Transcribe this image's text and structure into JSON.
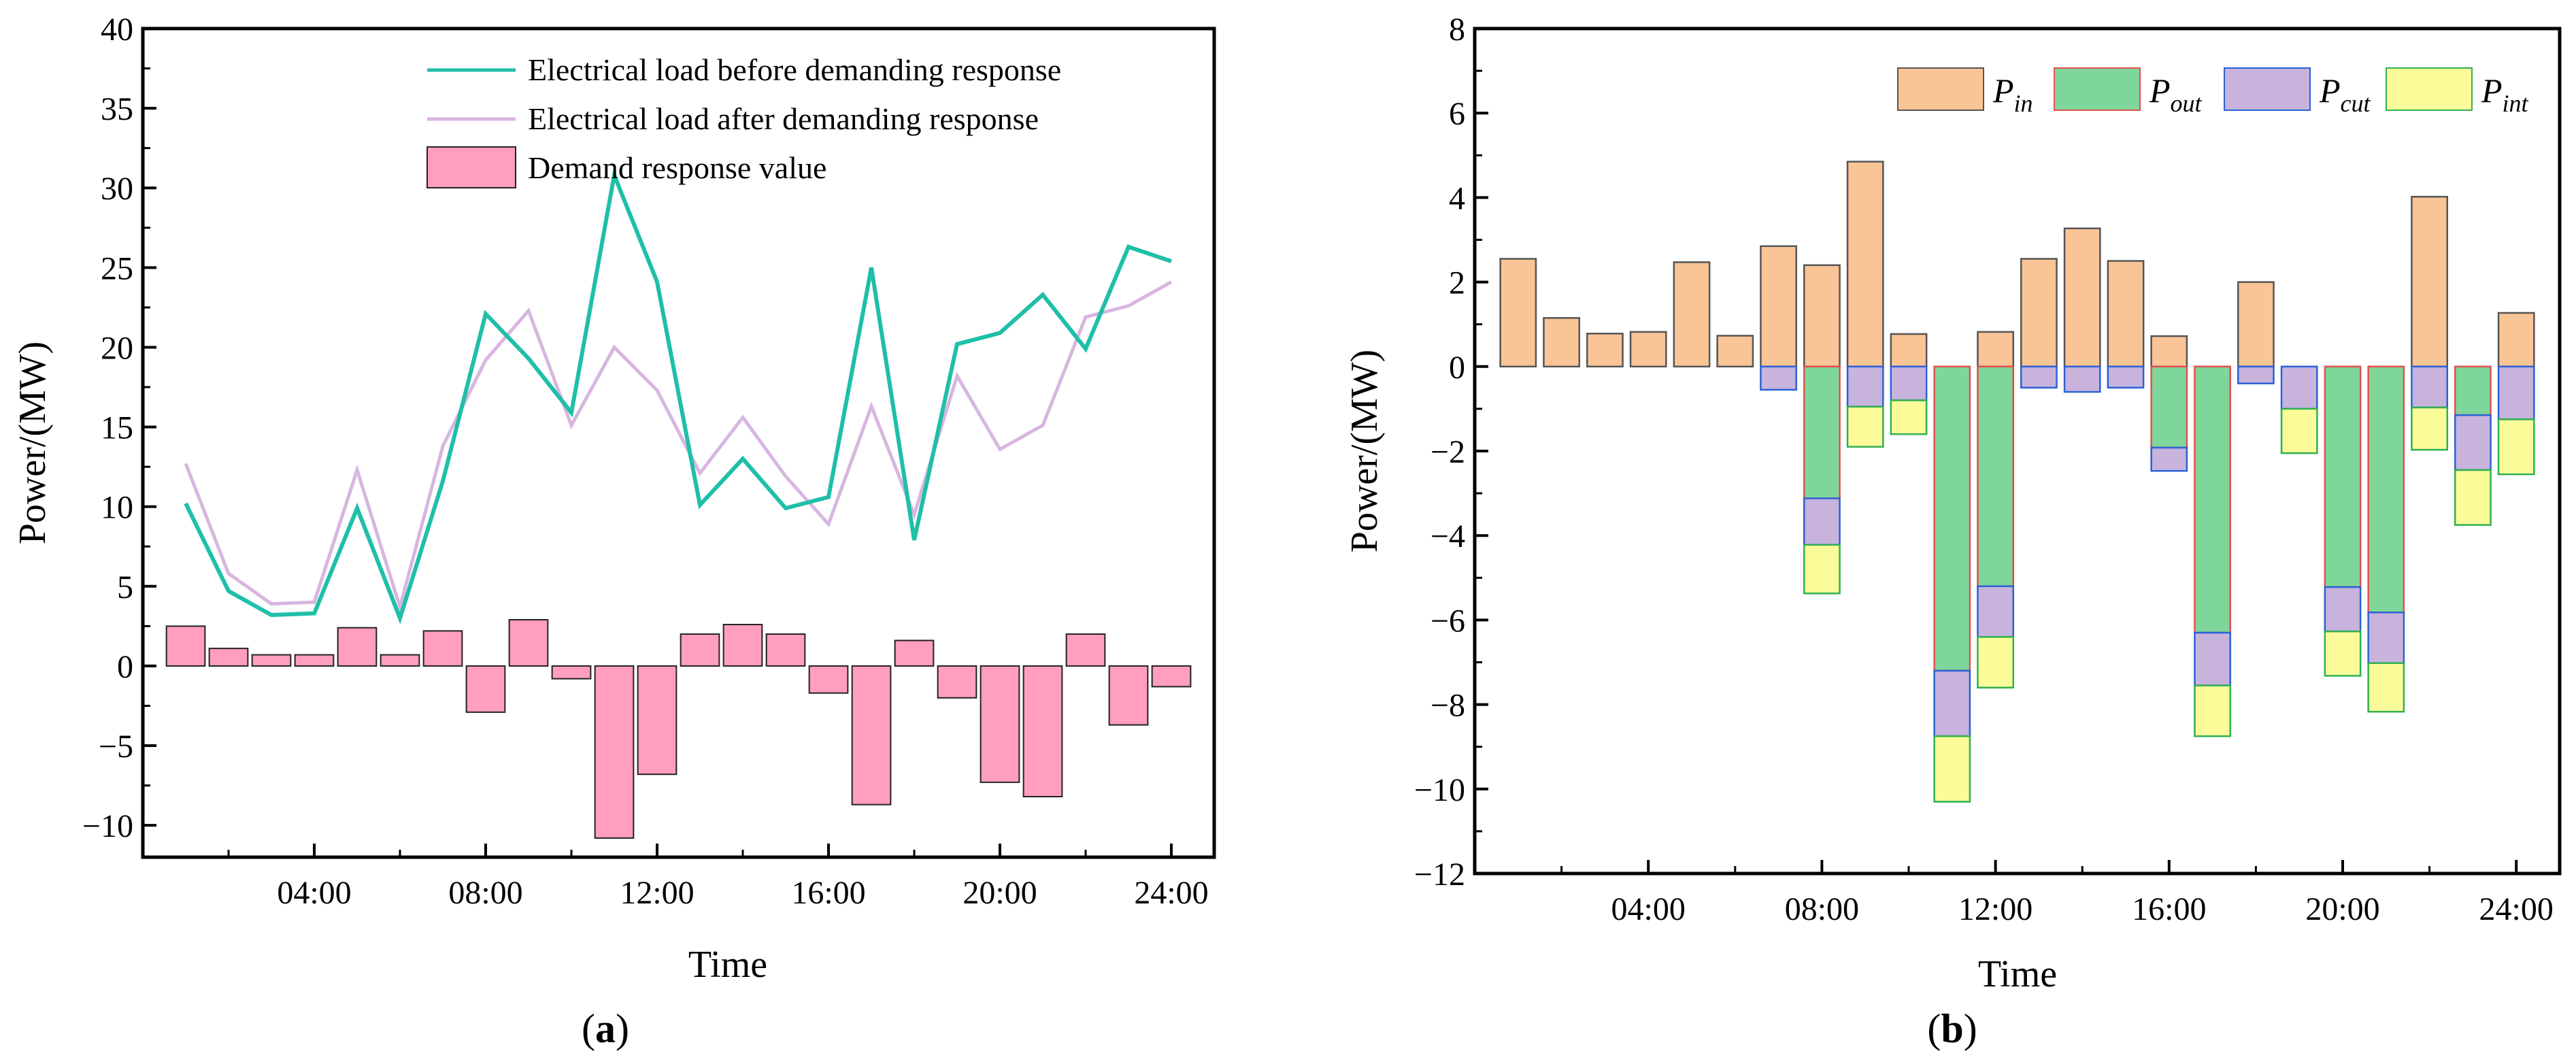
{
  "chart_data": [
    {
      "panel": "a",
      "caption": "(a)",
      "caption_letter": "a",
      "type": "line+bar",
      "xlabel": "Time",
      "ylabel": "Power/(MW)",
      "ylim": [
        -12,
        40
      ],
      "yticks": [
        -10,
        -5,
        0,
        5,
        10,
        15,
        20,
        25,
        30,
        35,
        40
      ],
      "ytick_labels": [
        "−10",
        "−5",
        "0",
        "5",
        "10",
        "15",
        "20",
        "25",
        "30",
        "35",
        "40"
      ],
      "xlim": [
        0,
        25
      ],
      "xticks": [
        4,
        8,
        12,
        16,
        20,
        24
      ],
      "xtick_labels": [
        "04:00",
        "08:00",
        "12:00",
        "16:00",
        "20:00",
        "24:00"
      ],
      "x": [
        1,
        2,
        3,
        4,
        5,
        6,
        7,
        8,
        9,
        10,
        11,
        12,
        13,
        14,
        15,
        16,
        17,
        18,
        19,
        20,
        21,
        22,
        23,
        24
      ],
      "legend_position": "top-right",
      "series": [
        {
          "name": "Electrical load before demanding response",
          "type": "line",
          "color": "#1fbfa8",
          "values": [
            10.2,
            4.7,
            3.2,
            3.3,
            9.9,
            3.0,
            11.6,
            22.1,
            19.3,
            15.9,
            30.8,
            24.1,
            10.1,
            13.0,
            9.9,
            10.6,
            25.0,
            7.9,
            20.2,
            20.9,
            23.3,
            19.9,
            26.3,
            25.4
          ]
        },
        {
          "name": "Electrical load after demanding response",
          "type": "line",
          "color": "#d8b6e0",
          "values": [
            12.7,
            5.8,
            3.9,
            4.0,
            12.3,
            3.7,
            13.8,
            19.2,
            22.3,
            15.1,
            20.0,
            17.3,
            12.1,
            15.6,
            11.9,
            8.9,
            16.3,
            9.5,
            18.2,
            13.6,
            15.1,
            21.9,
            22.6,
            24.1
          ]
        },
        {
          "name": "Demand response value",
          "type": "bar",
          "color": "#ff9ec0",
          "values": [
            2.5,
            1.1,
            0.7,
            0.7,
            2.4,
            0.7,
            2.2,
            -2.9,
            2.9,
            -0.8,
            -10.8,
            -6.8,
            2.0,
            2.6,
            2.0,
            -1.7,
            -8.7,
            1.6,
            -2.0,
            -7.3,
            -8.2,
            2.0,
            -3.7,
            -1.3
          ]
        }
      ]
    },
    {
      "panel": "b",
      "caption": "(b)",
      "caption_letter": "b",
      "type": "stacked-bar",
      "xlabel": "Time",
      "ylabel": "Power/(MW)",
      "ylim": [
        -12,
        8
      ],
      "yticks": [
        -12,
        -10,
        -8,
        -6,
        -4,
        -2,
        0,
        2,
        4,
        6,
        8
      ],
      "ytick_labels": [
        "−12",
        "−10",
        "−8",
        "−6",
        "−4",
        "−2",
        "0",
        "2",
        "4",
        "6",
        "8"
      ],
      "xlim": [
        0,
        25
      ],
      "xticks": [
        4,
        8,
        12,
        16,
        20,
        24
      ],
      "xtick_labels": [
        "04:00",
        "08:00",
        "12:00",
        "16:00",
        "20:00",
        "24:00"
      ],
      "x": [
        1,
        2,
        3,
        4,
        5,
        6,
        7,
        8,
        9,
        10,
        11,
        12,
        13,
        14,
        15,
        16,
        17,
        18,
        19,
        20,
        21,
        22,
        23,
        24
      ],
      "legend_position": "top-right",
      "series": [
        {
          "name": "P_in",
          "label_main": "P",
          "label_sub": "in",
          "fill": "#f9c496",
          "edge": "#555555",
          "values": [
            2.55,
            1.15,
            0.78,
            0.82,
            2.47,
            0.73,
            2.85,
            2.4,
            4.85,
            0.77,
            0,
            0.82,
            2.55,
            3.27,
            2.5,
            0.72,
            0,
            2.0,
            0,
            0,
            0,
            4.02,
            0,
            1.27
          ]
        },
        {
          "name": "P_out",
          "label_main": "P",
          "label_sub": "out",
          "fill": "#7fd69a",
          "edge": "#e05050",
          "values": [
            0,
            0,
            0,
            0,
            0,
            0,
            0,
            -3.12,
            0,
            0,
            -7.2,
            -5.2,
            0,
            0,
            0,
            -1.92,
            -6.3,
            0,
            0,
            -5.22,
            -5.82,
            0,
            -1.15,
            0
          ]
        },
        {
          "name": "P_cut",
          "label_main": "P",
          "label_sub": "cut",
          "fill": "#c7b3dc",
          "edge": "#2a62d6",
          "values": [
            0,
            0,
            0,
            0,
            0,
            0,
            -0.55,
            -1.1,
            -0.95,
            -0.8,
            -1.55,
            -1.2,
            -0.5,
            -0.6,
            -0.5,
            -0.55,
            -1.25,
            -0.4,
            -1.0,
            -1.05,
            -1.2,
            -0.97,
            -1.3,
            -1.25
          ]
        },
        {
          "name": "P_int",
          "label_main": "P",
          "label_sub": "int",
          "fill": "#fbfb9a",
          "edge": "#30b050",
          "values": [
            0,
            0,
            0,
            0,
            0,
            0,
            0,
            -1.15,
            -0.95,
            -0.8,
            -1.55,
            -1.2,
            0,
            0,
            0,
            0,
            -1.2,
            0,
            -1.05,
            -1.05,
            -1.15,
            -1.0,
            -1.3,
            -1.3
          ]
        }
      ]
    }
  ]
}
